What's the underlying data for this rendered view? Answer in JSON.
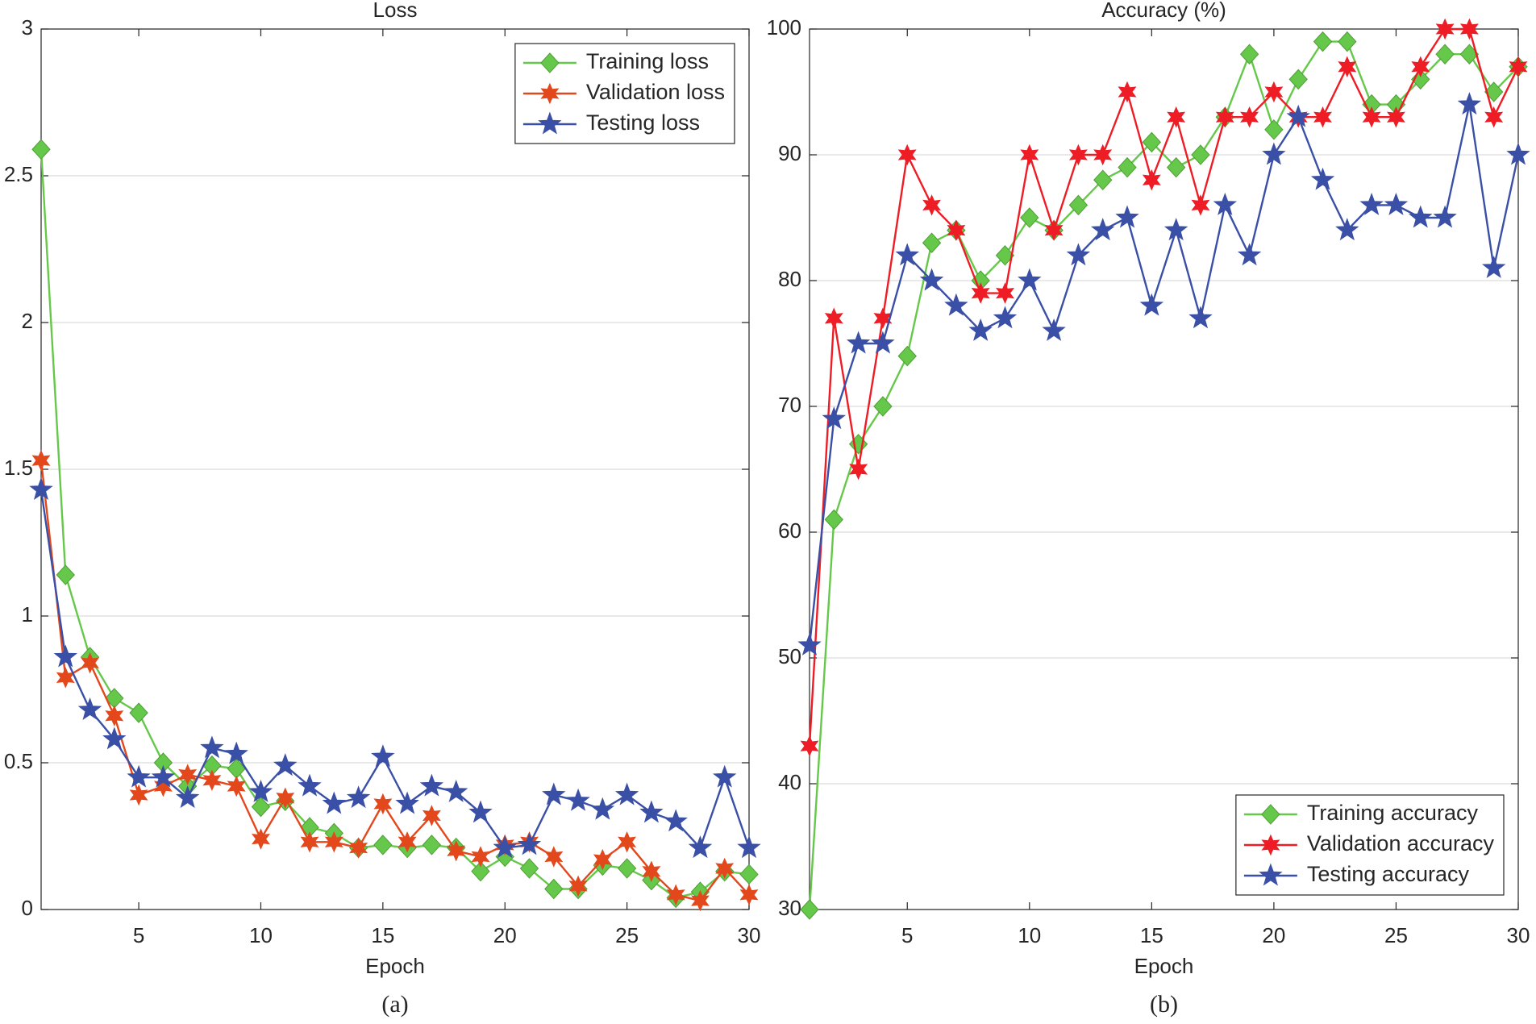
{
  "chart_data": [
    {
      "type": "line",
      "title": "Loss",
      "x_label": "Epoch",
      "caption": "(a)",
      "x": [
        1,
        2,
        3,
        4,
        5,
        6,
        7,
        8,
        9,
        10,
        11,
        12,
        13,
        14,
        15,
        16,
        17,
        18,
        19,
        20,
        21,
        22,
        23,
        24,
        25,
        26,
        27,
        28,
        29,
        30
      ],
      "xlim": [
        1,
        30
      ],
      "xticks": [
        5,
        10,
        15,
        20,
        25,
        30
      ],
      "ylim": [
        0,
        3
      ],
      "yticks": [
        0,
        0.5,
        1,
        1.5,
        2,
        2.5,
        3
      ],
      "grid": true,
      "legend": "upper right",
      "series": [
        {
          "name": "Training loss",
          "color": "#66c84a",
          "marker": "diamond",
          "values": [
            2.59,
            1.14,
            0.86,
            0.72,
            0.67,
            0.5,
            0.42,
            0.49,
            0.48,
            0.35,
            0.37,
            0.28,
            0.26,
            0.21,
            0.22,
            0.21,
            0.22,
            0.21,
            0.13,
            0.18,
            0.14,
            0.07,
            0.07,
            0.15,
            0.14,
            0.1,
            0.04,
            0.06,
            0.13,
            0.12
          ]
        },
        {
          "name": "Validation loss",
          "color": "#e2481c",
          "marker": "hexagram",
          "values": [
            1.53,
            0.79,
            0.84,
            0.66,
            0.39,
            0.42,
            0.46,
            0.44,
            0.42,
            0.24,
            0.38,
            0.23,
            0.23,
            0.21,
            0.36,
            0.23,
            0.32,
            0.2,
            0.18,
            0.22,
            0.23,
            0.18,
            0.08,
            0.17,
            0.23,
            0.13,
            0.05,
            0.03,
            0.14,
            0.05
          ]
        },
        {
          "name": "Testing loss",
          "color": "#3a4fa6",
          "marker": "star",
          "values": [
            1.43,
            0.86,
            0.68,
            0.58,
            0.45,
            0.45,
            0.38,
            0.55,
            0.53,
            0.4,
            0.49,
            0.42,
            0.36,
            0.38,
            0.52,
            0.36,
            0.42,
            0.4,
            0.33,
            0.21,
            0.22,
            0.39,
            0.37,
            0.34,
            0.39,
            0.33,
            0.3,
            0.21,
            0.45,
            0.21
          ]
        }
      ]
    },
    {
      "type": "line",
      "title": "Accuracy (%)",
      "x_label": "Epoch",
      "caption": "(b)",
      "x": [
        1,
        2,
        3,
        4,
        5,
        6,
        7,
        8,
        9,
        10,
        11,
        12,
        13,
        14,
        15,
        16,
        17,
        18,
        19,
        20,
        21,
        22,
        23,
        24,
        25,
        26,
        27,
        28,
        29,
        30
      ],
      "xlim": [
        1,
        30
      ],
      "xticks": [
        5,
        10,
        15,
        20,
        25,
        30
      ],
      "ylim": [
        30,
        100
      ],
      "yticks": [
        30,
        40,
        50,
        60,
        70,
        80,
        90,
        100
      ],
      "grid": true,
      "legend": "lower right",
      "series": [
        {
          "name": "Training accuracy",
          "color": "#66c84a",
          "marker": "diamond",
          "values": [
            30,
            61,
            67,
            70,
            74,
            83,
            84,
            80,
            82,
            85,
            84,
            86,
            88,
            89,
            91,
            89,
            90,
            93,
            98,
            92,
            96,
            99,
            99,
            94,
            94,
            96,
            98,
            98,
            95,
            97
          ]
        },
        {
          "name": "Validation accuracy",
          "color": "#ee1c25",
          "marker": "hexagram",
          "values": [
            43,
            77,
            65,
            77,
            90,
            86,
            84,
            79,
            79,
            90,
            84,
            90,
            90,
            95,
            88,
            93,
            86,
            93,
            93,
            95,
            93,
            93,
            97,
            93,
            93,
            97,
            100,
            100,
            93,
            97
          ]
        },
        {
          "name": "Testing accuracy",
          "color": "#3a4fa6",
          "marker": "star",
          "values": [
            51,
            69,
            75,
            75,
            82,
            80,
            78,
            76,
            77,
            80,
            76,
            82,
            84,
            85,
            78,
            84,
            77,
            86,
            82,
            90,
            93,
            88,
            84,
            86,
            86,
            85,
            85,
            94,
            81,
            90
          ]
        }
      ]
    }
  ]
}
